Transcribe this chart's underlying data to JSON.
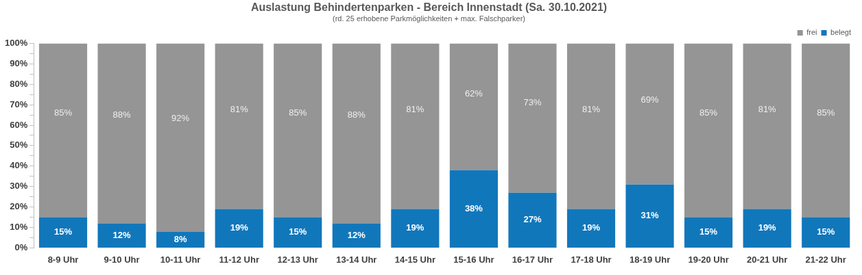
{
  "chart_data": {
    "type": "bar",
    "stacked": true,
    "title": "Auslastung Behindertenparken - Bereich Innenstadt (Sa. 30.10.2021)",
    "subtitle": "(rd. 25 erhobene Parkmöglichkeiten + max. Falschparker)",
    "categories": [
      "8-9 Uhr",
      "9-10 Uhr",
      "10-11 Uhr",
      "11-12 Uhr",
      "12-13 Uhr",
      "13-14 Uhr",
      "14-15 Uhr",
      "15-16 Uhr",
      "16-17 Uhr",
      "17-18 Uhr",
      "18-19 Uhr",
      "19-20 Uhr",
      "20-21 Uhr",
      "21-22 Uhr"
    ],
    "series": [
      {
        "name": "belegt",
        "color": "#1177bb",
        "values": [
          15,
          12,
          8,
          19,
          15,
          12,
          19,
          38,
          27,
          19,
          31,
          15,
          19,
          15
        ],
        "value_labels": [
          "15%",
          "12%",
          "8%",
          "19%",
          "15%",
          "12%",
          "19%",
          "38%",
          "27%",
          "19%",
          "31%",
          "15%",
          "19%",
          "15%"
        ]
      },
      {
        "name": "frei",
        "color": "#959595",
        "values": [
          85,
          88,
          92,
          81,
          85,
          88,
          81,
          62,
          73,
          81,
          69,
          85,
          81,
          85
        ],
        "value_labels": [
          "85%",
          "88%",
          "92%",
          "81%",
          "85%",
          "88%",
          "81%",
          "62%",
          "73%",
          "81%",
          "69%",
          "85%",
          "81%",
          "85%"
        ]
      }
    ],
    "ylim": [
      0,
      100
    ],
    "yticks": [
      {
        "value": 0,
        "label": "0%"
      },
      {
        "value": 5,
        "label": null
      },
      {
        "value": 10,
        "label": "10%"
      },
      {
        "value": 15,
        "label": null
      },
      {
        "value": 20,
        "label": "20%"
      },
      {
        "value": 25,
        "label": null
      },
      {
        "value": 30,
        "label": "30%"
      },
      {
        "value": 35,
        "label": null
      },
      {
        "value": 40,
        "label": "40%"
      },
      {
        "value": 45,
        "label": null
      },
      {
        "value": 50,
        "label": "50%"
      },
      {
        "value": 55,
        "label": null
      },
      {
        "value": 60,
        "label": "60%"
      },
      {
        "value": 65,
        "label": null
      },
      {
        "value": 70,
        "label": "70%"
      },
      {
        "value": 75,
        "label": null
      },
      {
        "value": 80,
        "label": "80%"
      },
      {
        "value": 85,
        "label": null
      },
      {
        "value": 90,
        "label": "90%"
      },
      {
        "value": 95,
        "label": null
      },
      {
        "value": 100,
        "label": "100%"
      }
    ],
    "legend": "top right",
    "grid": false
  }
}
